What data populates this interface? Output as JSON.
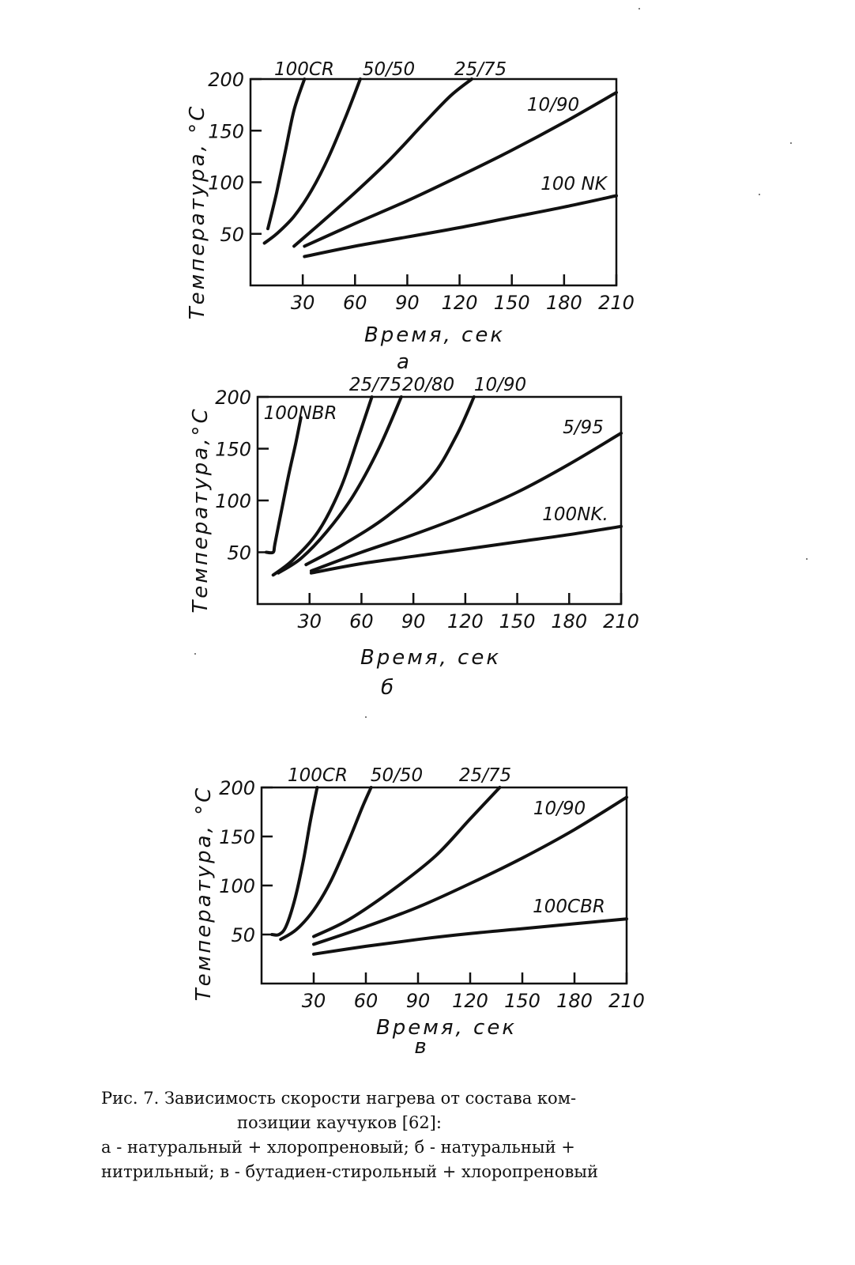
{
  "chart_data": [
    {
      "type": "line",
      "panel": "а",
      "xlabel": "Время, сек",
      "ylabel": "Температура, °С",
      "xlim": [
        0,
        210
      ],
      "ylim": [
        0,
        200
      ],
      "x_ticks": [
        30,
        60,
        90,
        120,
        150,
        180,
        210
      ],
      "y_ticks": [
        50,
        100,
        150,
        200
      ],
      "series": [
        {
          "name": "100CR",
          "x": [
            10,
            15,
            20,
            25,
            31
          ],
          "y": [
            55,
            90,
            130,
            170,
            200
          ]
        },
        {
          "name": "50/50",
          "x": [
            8,
            15,
            25,
            35,
            45,
            55,
            63
          ],
          "y": [
            41,
            50,
            67,
            92,
            125,
            165,
            200
          ]
        },
        {
          "name": "25/75",
          "x": [
            25,
            40,
            60,
            80,
            100,
            115,
            127
          ],
          "y": [
            38,
            60,
            90,
            122,
            158,
            184,
            200
          ]
        },
        {
          "name": "10/90",
          "x": [
            31,
            60,
            90,
            120,
            150,
            180,
            210
          ],
          "y": [
            38,
            60,
            82,
            106,
            131,
            158,
            187
          ]
        },
        {
          "name": "100 NK",
          "x": [
            31,
            60,
            90,
            120,
            150,
            180,
            210
          ],
          "y": [
            28,
            38,
            47,
            56,
            66,
            76,
            87
          ]
        }
      ]
    },
    {
      "type": "line",
      "panel": "б",
      "xlabel": "Время, сек",
      "ylabel": "Температура,°С",
      "xlim": [
        0,
        210
      ],
      "ylim": [
        0,
        200
      ],
      "x_ticks": [
        30,
        60,
        90,
        120,
        150,
        180,
        210
      ],
      "y_ticks": [
        50,
        100,
        150,
        200
      ],
      "series": [
        {
          "name": "100NBR",
          "x": [
            5,
            9,
            10,
            14,
            18,
            22,
            25
          ],
          "y": [
            50,
            50,
            58,
            92,
            125,
            155,
            180
          ]
        },
        {
          "name": "25/75",
          "x": [
            9,
            20,
            35,
            48,
            58,
            66
          ],
          "y": [
            28,
            42,
            70,
            112,
            160,
            200
          ]
        },
        {
          "name": "20/80",
          "x": [
            12,
            25,
            40,
            55,
            70,
            83
          ],
          "y": [
            30,
            44,
            70,
            104,
            150,
            200
          ]
        },
        {
          "name": "10/90",
          "x": [
            28,
            50,
            75,
            100,
            115,
            125
          ],
          "y": [
            38,
            58,
            85,
            122,
            163,
            200
          ]
        },
        {
          "name": "5/95",
          "x": [
            31,
            60,
            90,
            120,
            150,
            180,
            210
          ],
          "y": [
            32,
            50,
            67,
            86,
            108,
            135,
            165
          ]
        },
        {
          "name": "100NK.",
          "x": [
            31,
            60,
            90,
            120,
            150,
            180,
            210
          ],
          "y": [
            30,
            39,
            46,
            53,
            60,
            67,
            75
          ]
        }
      ]
    },
    {
      "type": "line",
      "panel": "в",
      "xlabel": "Время, сек",
      "ylabel": "Температура, °С",
      "xlim": [
        0,
        210
      ],
      "ylim": [
        0,
        200
      ],
      "x_ticks": [
        30,
        60,
        90,
        120,
        150,
        180,
        210
      ],
      "y_ticks": [
        50,
        100,
        150,
        200
      ],
      "series": [
        {
          "name": "100CR",
          "x": [
            6,
            10,
            14,
            19,
            24,
            28,
            32
          ],
          "y": [
            50,
            50,
            58,
            85,
            125,
            165,
            200
          ]
        },
        {
          "name": "50/50",
          "x": [
            11,
            20,
            30,
            40,
            50,
            58,
            63
          ],
          "y": [
            45,
            55,
            75,
            105,
            145,
            180,
            200
          ]
        },
        {
          "name": "25/75",
          "x": [
            30,
            50,
            75,
            100,
            120,
            137
          ],
          "y": [
            48,
            65,
            95,
            130,
            168,
            200
          ]
        },
        {
          "name": "10/90",
          "x": [
            30,
            60,
            90,
            120,
            150,
            180,
            210
          ],
          "y": [
            40,
            58,
            78,
            102,
            128,
            157,
            190
          ]
        },
        {
          "name": "100CBR",
          "x": [
            30,
            60,
            90,
            120,
            150,
            180,
            210
          ],
          "y": [
            30,
            38,
            45,
            51,
            56,
            61,
            66
          ]
        }
      ]
    }
  ],
  "caption": {
    "line1": "Рис.  7. Зависимость скорости нагрева от состава ком-",
    "line2": "позиции каучуков [62]:",
    "line3": "а - натуральный + хлоропреновый; б - натуральный +",
    "line4": "нитрильный; в - бутадиен-стирольный + хлоропреновый"
  }
}
